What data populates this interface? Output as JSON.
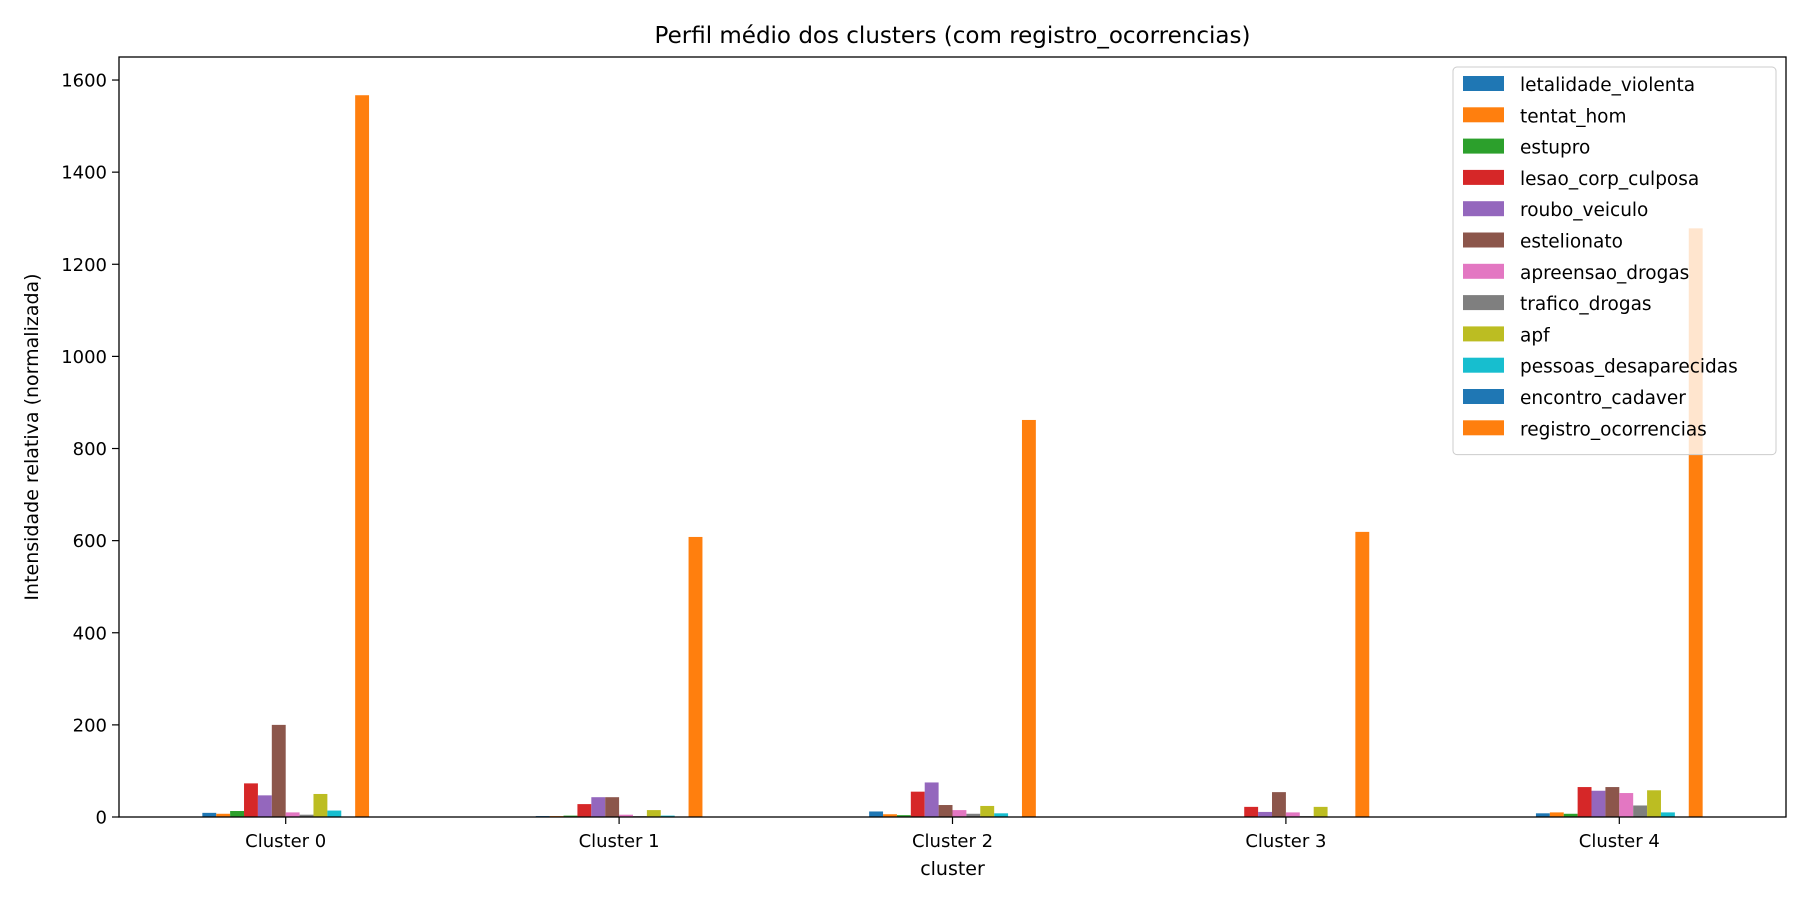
{
  "chart_data": {
    "type": "bar",
    "title": "Perfil médio dos clusters (com registro_ocorrencias)",
    "xlabel": "cluster",
    "ylabel": "Intensidade relativa (normalizada)",
    "ylim": [
      0,
      1650
    ],
    "yticks": [
      0,
      200,
      400,
      600,
      800,
      1000,
      1200,
      1400,
      1600
    ],
    "grid": false,
    "legend_position": "top-right",
    "categories": [
      "Cluster 0",
      "Cluster 1",
      "Cluster 2",
      "Cluster 3",
      "Cluster 4"
    ],
    "series": [
      {
        "name": "letalidade_violenta",
        "color": "#1f77b4",
        "values": [
          9,
          2,
          12,
          1,
          8
        ]
      },
      {
        "name": "tentat_hom",
        "color": "#ff7f0e",
        "values": [
          7,
          2,
          6,
          1,
          10
        ]
      },
      {
        "name": "estupro",
        "color": "#2ca02c",
        "values": [
          13,
          3,
          4,
          1,
          7
        ]
      },
      {
        "name": "lesao_corp_culposa",
        "color": "#d62728",
        "values": [
          73,
          28,
          55,
          22,
          65
        ]
      },
      {
        "name": "roubo_veiculo",
        "color": "#9467bd",
        "values": [
          47,
          43,
          75,
          11,
          57
        ]
      },
      {
        "name": "estelionato",
        "color": "#8c564b",
        "values": [
          200,
          43,
          26,
          54,
          65
        ]
      },
      {
        "name": "apreensao_drogas",
        "color": "#e377c2",
        "values": [
          10,
          5,
          15,
          10,
          52
        ]
      },
      {
        "name": "trafico_drogas",
        "color": "#7f7f7f",
        "values": [
          5,
          2,
          7,
          2,
          25
        ]
      },
      {
        "name": "apf",
        "color": "#bcbd22",
        "values": [
          50,
          15,
          24,
          22,
          58
        ]
      },
      {
        "name": "pessoas_desaparecidas",
        "color": "#17becf",
        "values": [
          14,
          3,
          8,
          1,
          10
        ]
      },
      {
        "name": "encontro_cadaver",
        "color": "#1f77b4",
        "values": [
          1,
          0,
          1,
          0,
          1
        ]
      },
      {
        "name": "registro_ocorrencias",
        "color": "#ff7f0e",
        "values": [
          1567,
          608,
          862,
          619,
          1278
        ]
      }
    ]
  }
}
